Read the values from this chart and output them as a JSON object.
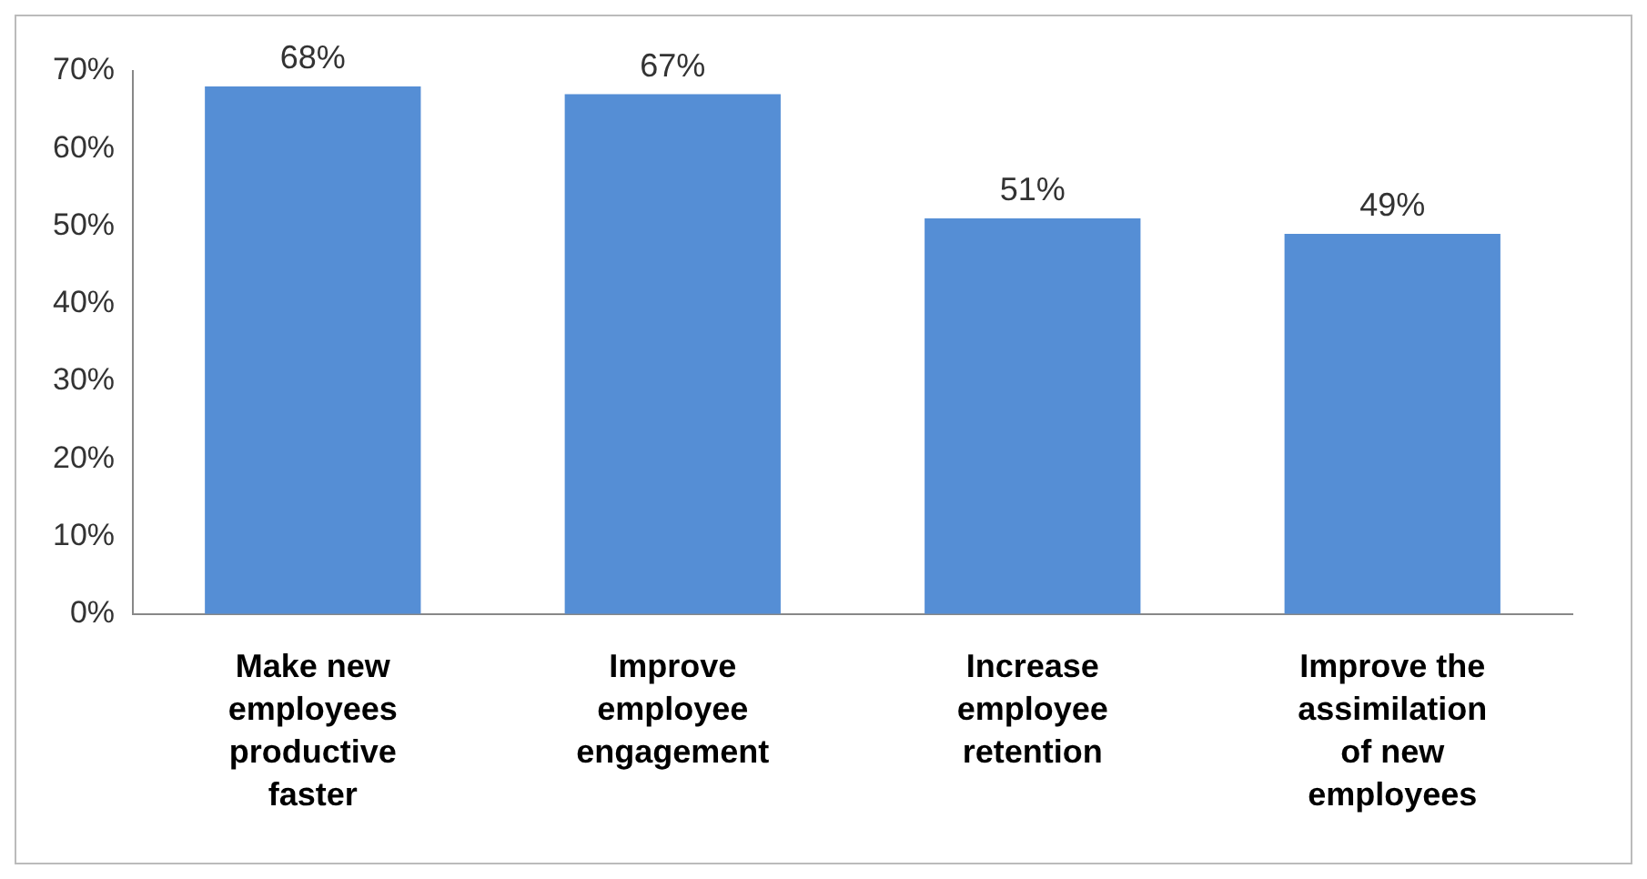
{
  "chart_data": {
    "type": "bar",
    "categories": [
      "Make new employees productive faster",
      "Improve employee engagement",
      "Increase employee retention",
      "Improve the assimilation of new employees"
    ],
    "values": [
      68,
      67,
      51,
      49
    ],
    "value_labels": [
      "68%",
      "67%",
      "51%",
      "49%"
    ],
    "color": "#558ed5",
    "ylim": [
      0,
      70
    ],
    "yticks": [
      {
        "value": 0,
        "label": "0%"
      },
      {
        "value": 10,
        "label": "10%"
      },
      {
        "value": 20,
        "label": "20%"
      },
      {
        "value": 30,
        "label": "30%"
      },
      {
        "value": 40,
        "label": "40%"
      },
      {
        "value": 50,
        "label": "50%"
      },
      {
        "value": 60,
        "label": "60%"
      },
      {
        "value": 70,
        "label": "70%"
      }
    ],
    "grid": false,
    "legend": false
  }
}
